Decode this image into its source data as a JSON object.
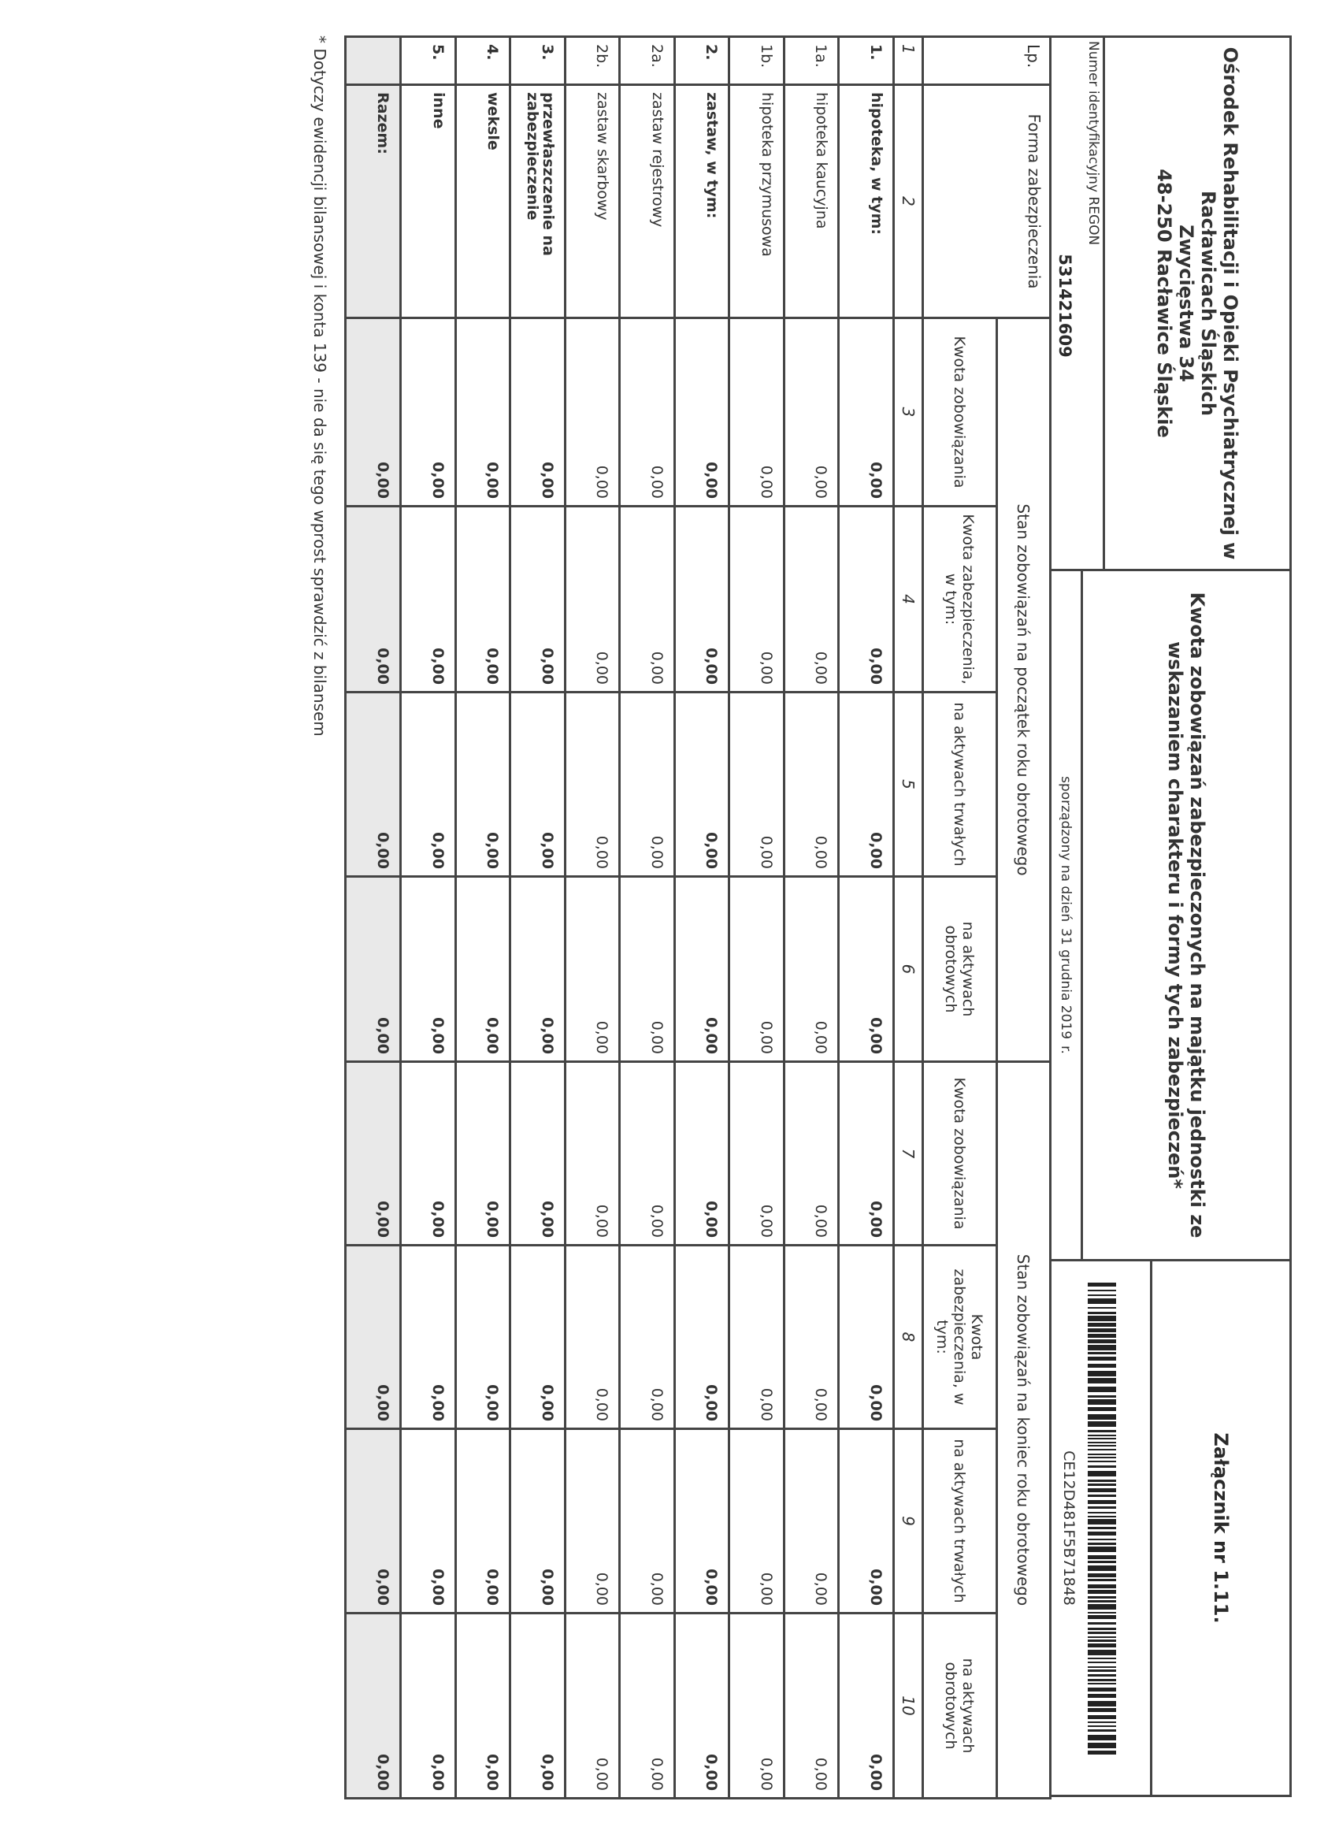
{
  "header": {
    "organization": [
      "Ośrodek Rehabilitacji i Opieki Psychiatrycznej w",
      "Racławicach Śląskich",
      "Zwycięstwa 34",
      "48-250 Racławice Śląskie"
    ],
    "regon_label": "Numer identyfikacyjny REGON",
    "regon_value": "531421609",
    "title_line1": "Kwota zobowiązań zabezpieczonych na majątku jednostki ze",
    "title_line2": "wskazaniem charakteru i formy tych zabezpieczeń*",
    "prepared_on_label": "sporządzony na dzień",
    "prepared_on_date": "31 grudnia 2019",
    "prepared_on_suffix": "r.",
    "attachment": "Załącznik nr 1.11.",
    "barcode_text": "CE12D481F5B71848"
  },
  "table": {
    "col_lp": "Lp.",
    "col_form": "Forma zabezpieczenia",
    "group_start": "Stan zobowiązań na początek roku obrotowego",
    "group_end": "Stan zobowiązań na koniec roku obrotowego",
    "subcolumns": [
      "Kwota zobowiązania",
      "Kwota zabezpieczenia, w tym:",
      "na aktywach trwałych",
      "na aktywach obrotowych",
      "Kwota zobowiązania",
      "Kwota zabezpieczenia, w tym:",
      "na aktywach trwałych",
      "na aktywach obrotowych"
    ],
    "column_numbers": [
      "1",
      "2",
      "3",
      "4",
      "5",
      "6",
      "7",
      "8",
      "9",
      "10"
    ],
    "rows": [
      {
        "lp": "1.",
        "label": "hipoteka, w tym:",
        "bold": true,
        "values": [
          "0,00",
          "0,00",
          "0,00",
          "0,00",
          "0,00",
          "0,00",
          "0,00",
          "0,00"
        ]
      },
      {
        "lp": "1a.",
        "label": "hipoteka kaucyjna",
        "bold": false,
        "values": [
          "0,00",
          "0,00",
          "0,00",
          "0,00",
          "0,00",
          "0,00",
          "0,00",
          "0,00"
        ]
      },
      {
        "lp": "1b.",
        "label": "hipoteka przymusowa",
        "bold": false,
        "values": [
          "0,00",
          "0,00",
          "0,00",
          "0,00",
          "0,00",
          "0,00",
          "0,00",
          "0,00"
        ]
      },
      {
        "lp": "2.",
        "label": "zastaw, w tym:",
        "bold": true,
        "values": [
          "0,00",
          "0,00",
          "0,00",
          "0,00",
          "0,00",
          "0,00",
          "0,00",
          "0,00"
        ]
      },
      {
        "lp": "2a.",
        "label": "zastaw rejestrowy",
        "bold": false,
        "values": [
          "0,00",
          "0,00",
          "0,00",
          "0,00",
          "0,00",
          "0,00",
          "0,00",
          "0,00"
        ]
      },
      {
        "lp": "2b.",
        "label": "zastaw skarbowy",
        "bold": false,
        "values": [
          "0,00",
          "0,00",
          "0,00",
          "0,00",
          "0,00",
          "0,00",
          "0,00",
          "0,00"
        ]
      },
      {
        "lp": "3.",
        "label": "przewłaszczenie na zabezpieczenie",
        "bold": true,
        "values": [
          "0,00",
          "0,00",
          "0,00",
          "0,00",
          "0,00",
          "0,00",
          "0,00",
          "0,00"
        ]
      },
      {
        "lp": "4.",
        "label": "weksle",
        "bold": true,
        "values": [
          "0,00",
          "0,00",
          "0,00",
          "0,00",
          "0,00",
          "0,00",
          "0,00",
          "0,00"
        ]
      },
      {
        "lp": "5.",
        "label": "inne",
        "bold": true,
        "values": [
          "0,00",
          "0,00",
          "0,00",
          "0,00",
          "0,00",
          "0,00",
          "0,00",
          "0,00"
        ]
      }
    ],
    "total": {
      "label": "Razem:",
      "values": [
        "0,00",
        "0,00",
        "0,00",
        "0,00",
        "0,00",
        "0,00",
        "0,00",
        "0,00"
      ]
    }
  },
  "footnote": "* Dotyczy ewidencji bilansowej i konta 139 - nie da się tego wprost sprawdzić z bilansem"
}
